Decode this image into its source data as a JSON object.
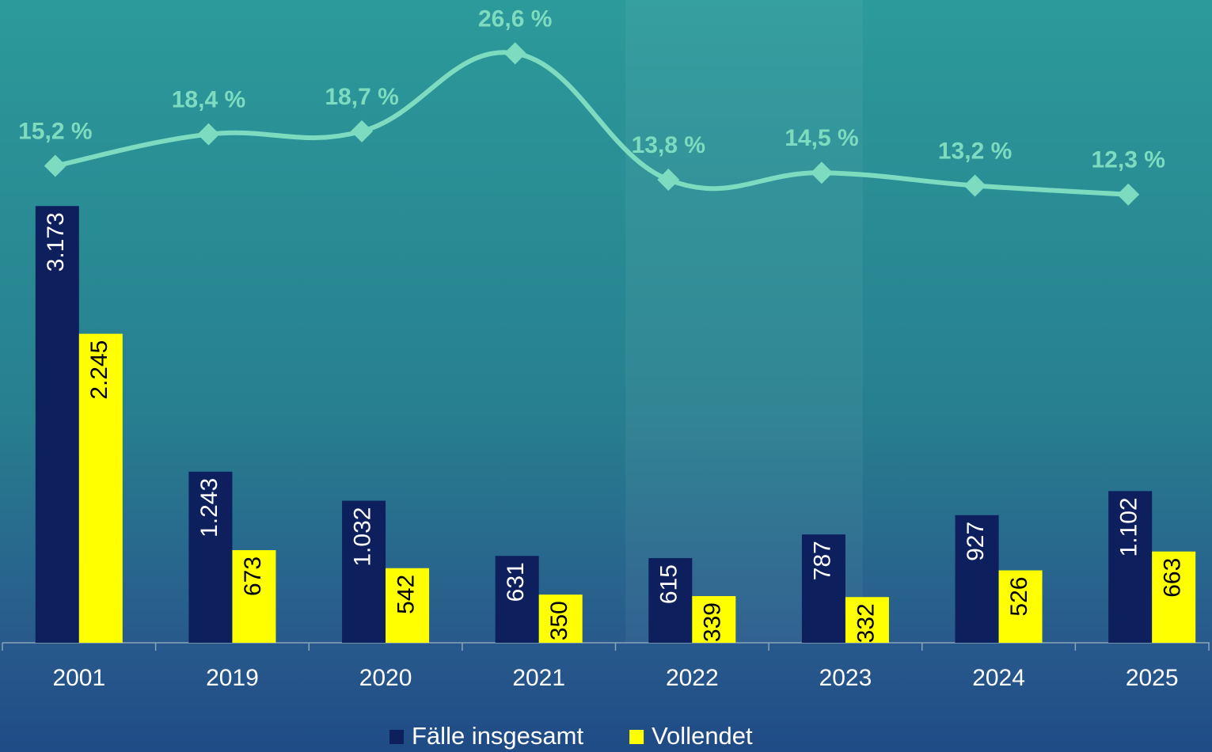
{
  "chart_data": {
    "type": "bar",
    "categories": [
      "2001",
      "2019",
      "2020",
      "2021",
      "2022",
      "2023",
      "2024",
      "2025"
    ],
    "series": [
      {
        "name": "Fälle insgesamt",
        "color": "#0d1f5c",
        "label_color": "#ffffff",
        "values": [
          3173,
          1243,
          1032,
          631,
          615,
          787,
          927,
          1102
        ],
        "value_labels": [
          "3.173",
          "1.243",
          "1.032",
          "631",
          "615",
          "787",
          "927",
          "1.102"
        ]
      },
      {
        "name": "Vollendet",
        "color": "#ffff00",
        "label_color": "#000000",
        "values": [
          2245,
          673,
          542,
          350,
          339,
          332,
          526,
          663
        ],
        "value_labels": [
          "2.245",
          "673",
          "542",
          "350",
          "339",
          "332",
          "526",
          "663"
        ]
      }
    ],
    "line": {
      "type": "line",
      "axis": "y2",
      "color": "#7ddcc0",
      "values": [
        15.2,
        18.4,
        18.7,
        26.6,
        13.8,
        14.5,
        13.2,
        12.3
      ],
      "value_labels": [
        "15,2 %",
        "18,4 %",
        "18,7 %",
        "26,6 %",
        "13,8 %",
        "14,5 %",
        "13,2 %",
        "12,3 %"
      ]
    },
    "ylim": [
      0,
      4670
    ],
    "y2lim": [
      -33.1,
      32
    ],
    "legend": "bottom"
  }
}
